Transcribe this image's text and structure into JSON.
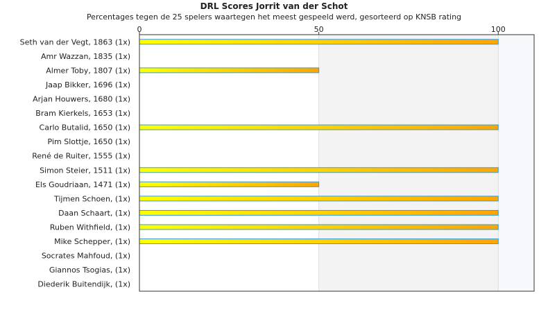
{
  "chart_data": {
    "type": "bar",
    "orientation": "horizontal",
    "title": "DRL Scores Jorrit van der Schot",
    "subtitle": "Percentages tegen de 25 spelers waartegen het meest gespeeld werd, gesorteerd op KNSB rating",
    "xlim": [
      0,
      110
    ],
    "xticks": [
      0,
      50,
      100
    ],
    "grid": true,
    "categories": [
      "Seth van der Vegt, 1863 (1x)",
      "Amr Wazzan, 1835 (1x)",
      "Almer Toby, 1807 (1x)",
      "Jaap Bikker, 1696 (1x)",
      "Arjan Houwers, 1680 (1x)",
      "Bram Kierkels, 1653 (1x)",
      "Carlo Butalid, 1650 (1x)",
      "Pim Slottje, 1650 (1x)",
      "René de Ruiter, 1555 (1x)",
      "Simon Steier, 1511 (1x)",
      "Els Goudriaan, 1471 (1x)",
      "Tijmen Schoen,  (1x)",
      "Daan Schaart,  (1x)",
      "Ruben Withfield,  (1x)",
      "Mike Schepper,  (1x)",
      "Socrates Mahfoud,  (1x)",
      "Giannos Tsogias,  (1x)",
      "Diederik Buitendijk,  (1x)"
    ],
    "values": [
      100,
      0,
      50,
      0,
      0,
      0,
      100,
      0,
      0,
      100,
      50,
      100,
      100,
      100,
      100,
      0,
      0,
      0
    ],
    "colors": {
      "bar_start": "#ffff00",
      "bar_end": "#ffa500",
      "bar_border": "#3a9ad9",
      "band_light": "#f3f3f3",
      "band_lighter": "#f7f8fb",
      "axis": "#333333",
      "grid": "#dddddd"
    }
  }
}
